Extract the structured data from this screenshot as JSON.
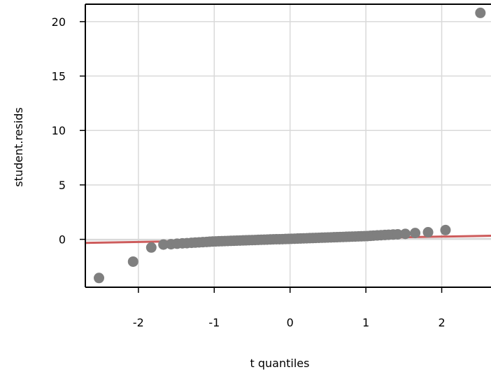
{
  "chart_data": {
    "type": "scatter",
    "title": "",
    "xlabel": "t quantiles",
    "ylabel": "student.resids",
    "xlim": [
      -2.7,
      2.65
    ],
    "ylim": [
      -4.4,
      21.6
    ],
    "x_ticks": [
      -2,
      -1,
      0,
      1,
      2
    ],
    "y_ticks": [
      0,
      5,
      10,
      15,
      20
    ],
    "grid": true,
    "legend": "none",
    "colors": {
      "points": "#7f7f7f",
      "fit_line": "#cd5c5c",
      "grid": "#d9d9d9",
      "reference_line": "#d9d9d9"
    },
    "fit_line": {
      "x": [
        -2.7,
        2.65
      ],
      "y": [
        -0.33,
        0.33
      ]
    },
    "series": [
      {
        "x": [
          -2.52,
          -2.07,
          -1.83,
          -1.67,
          -1.57,
          -1.49,
          -1.42,
          -1.36,
          -1.3,
          -1.25,
          -1.2,
          -1.15,
          -1.1,
          -1.06,
          -1.02,
          -0.98,
          -0.94,
          -0.9,
          -0.86,
          -0.82,
          -0.78,
          -0.74,
          -0.7,
          -0.66,
          -0.62,
          -0.58,
          -0.54,
          -0.5,
          -0.46,
          -0.42,
          -0.38,
          -0.34,
          -0.3,
          -0.26,
          -0.22,
          -0.18,
          -0.14,
          -0.1,
          -0.06,
          -0.02,
          0.02,
          0.06,
          0.1,
          0.14,
          0.18,
          0.22,
          0.26,
          0.3,
          0.34,
          0.38,
          0.42,
          0.46,
          0.5,
          0.54,
          0.58,
          0.62,
          0.66,
          0.7,
          0.74,
          0.78,
          0.82,
          0.86,
          0.9,
          0.94,
          0.98,
          1.02,
          1.06,
          1.1,
          1.15,
          1.2,
          1.25,
          1.3,
          1.36,
          1.42,
          1.52,
          1.65,
          1.82,
          2.05,
          2.51
        ],
        "y": [
          -3.55,
          -2.05,
          -0.75,
          -0.48,
          -0.45,
          -0.4,
          -0.37,
          -0.35,
          -0.32,
          -0.3,
          -0.28,
          -0.26,
          -0.24,
          -0.22,
          -0.2,
          -0.19,
          -0.18,
          -0.17,
          -0.16,
          -0.15,
          -0.14,
          -0.13,
          -0.12,
          -0.11,
          -0.1,
          -0.09,
          -0.08,
          -0.07,
          -0.06,
          -0.05,
          -0.04,
          -0.03,
          -0.02,
          -0.01,
          0.0,
          0.01,
          0.01,
          0.02,
          0.03,
          0.04,
          0.05,
          0.06,
          0.07,
          0.08,
          0.09,
          0.1,
          0.11,
          0.12,
          0.13,
          0.14,
          0.15,
          0.16,
          0.17,
          0.18,
          0.19,
          0.2,
          0.21,
          0.22,
          0.23,
          0.24,
          0.25,
          0.26,
          0.27,
          0.28,
          0.29,
          0.3,
          0.32,
          0.34,
          0.36,
          0.38,
          0.4,
          0.42,
          0.44,
          0.46,
          0.5,
          0.58,
          0.65,
          0.85,
          20.8
        ]
      }
    ]
  }
}
